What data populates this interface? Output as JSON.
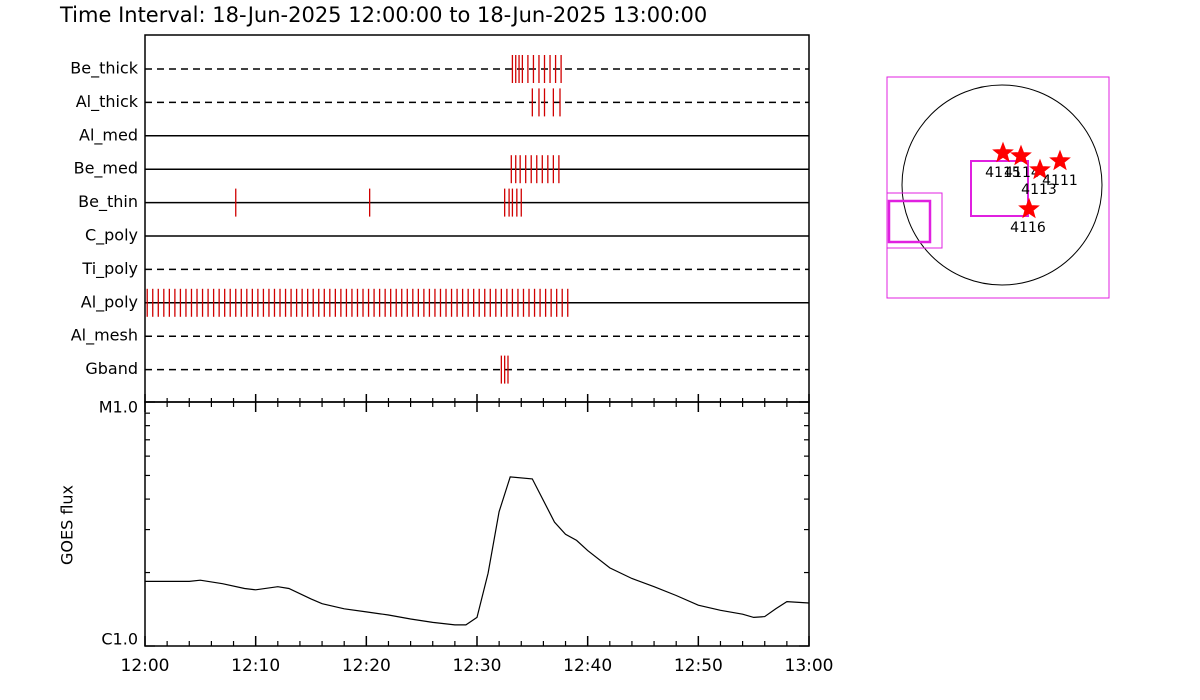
{
  "chart_data": [
    {
      "type": "timeline",
      "title": "Time Interval: 18-Jun-2025 12:00:00 to 18-Jun-2025 13:00:00",
      "color": "#d00000",
      "xlim": [
        0,
        60
      ],
      "rows": [
        {
          "name": "Be_thick",
          "style": "dashed",
          "x": [
            33.2,
            33.5,
            33.8,
            34.1,
            34.6,
            35.1,
            35.6,
            36.1,
            36.6,
            37.1,
            37.6
          ]
        },
        {
          "name": "Al_thick",
          "style": "dashed",
          "x": [
            35.0,
            35.6,
            36.1,
            36.9,
            37.5
          ]
        },
        {
          "name": "Al_med",
          "style": "solid",
          "x": []
        },
        {
          "name": "Be_med",
          "style": "solid",
          "x": [
            33.1,
            33.5,
            33.9,
            34.4,
            34.9,
            35.4,
            35.9,
            36.4,
            36.9,
            37.4
          ]
        },
        {
          "name": "Be_thin",
          "style": "solid",
          "x": [
            8.2,
            20.3,
            32.5,
            32.9,
            33.2,
            33.6,
            34.0
          ]
        },
        {
          "name": "C_poly",
          "style": "solid",
          "x": []
        },
        {
          "name": "Ti_poly",
          "style": "dashed",
          "x": []
        },
        {
          "name": "Al_poly",
          "style": "solid",
          "x": [
            0.2,
            0.7,
            1.2,
            1.7,
            2.2,
            2.7,
            3.2,
            3.7,
            4.2,
            4.7,
            5.2,
            5.7,
            6.2,
            6.7,
            7.2,
            7.7,
            8.2,
            8.7,
            9.2,
            9.7,
            10.2,
            10.7,
            11.2,
            11.7,
            12.2,
            12.7,
            13.2,
            13.7,
            14.2,
            14.7,
            15.2,
            15.7,
            16.2,
            16.7,
            17.2,
            17.7,
            18.2,
            18.7,
            19.2,
            19.7,
            20.2,
            20.7,
            21.2,
            21.7,
            22.2,
            22.7,
            23.2,
            23.7,
            24.2,
            24.7,
            25.2,
            25.7,
            26.2,
            26.7,
            27.2,
            27.7,
            28.2,
            28.7,
            29.2,
            29.7,
            30.2,
            30.7,
            31.2,
            31.7,
            32.2,
            32.7,
            33.2,
            33.7,
            34.2,
            34.7,
            35.2,
            35.7,
            36.2,
            36.7,
            37.2,
            37.7,
            38.2
          ]
        },
        {
          "name": "Al_mesh",
          "style": "dashed",
          "x": []
        },
        {
          "name": "Gband",
          "style": "dashed",
          "x": [
            32.2,
            32.5,
            32.8
          ]
        }
      ]
    },
    {
      "type": "line",
      "ylabel": "GOES flux",
      "color": "#000000",
      "ylog": true,
      "xlim": [
        0,
        60
      ],
      "ylim": [
        1e-06,
        1e-05
      ],
      "yticks": [
        {
          "value": 1e-06,
          "label": "C1.0"
        },
        {
          "value": 1e-05,
          "label": "M1.0"
        }
      ],
      "yminorticks": [
        2e-06,
        3e-06,
        4e-06,
        5e-06,
        6e-06,
        7e-06,
        8e-06,
        9e-06
      ],
      "xticks": [
        {
          "value": 0,
          "label": "12:00"
        },
        {
          "value": 10,
          "label": "12:10"
        },
        {
          "value": 20,
          "label": "12:20"
        },
        {
          "value": 30,
          "label": "12:30"
        },
        {
          "value": 40,
          "label": "12:40"
        },
        {
          "value": 50,
          "label": "12:50"
        },
        {
          "value": 60,
          "label": "13:00"
        }
      ],
      "xminorticks": [
        2,
        4,
        6,
        8,
        12,
        14,
        16,
        18,
        22,
        24,
        26,
        28,
        32,
        34,
        36,
        38,
        42,
        44,
        46,
        48,
        52,
        54,
        56,
        58
      ],
      "x": [
        0,
        2,
        4,
        5,
        7,
        9,
        10,
        12,
        13,
        15,
        16,
        18,
        20,
        22,
        24,
        26,
        28,
        29,
        30,
        31,
        32,
        33,
        35,
        37,
        38,
        39,
        40,
        42,
        44,
        46,
        48,
        50,
        52,
        54,
        55,
        56,
        57,
        58,
        60
      ],
      "values": [
        1.84e-06,
        1.84e-06,
        1.84e-06,
        1.86e-06,
        1.8e-06,
        1.72e-06,
        1.7e-06,
        1.75e-06,
        1.72e-06,
        1.56e-06,
        1.49e-06,
        1.42e-06,
        1.38e-06,
        1.34e-06,
        1.29e-06,
        1.25e-06,
        1.22e-06,
        1.22e-06,
        1.31e-06,
        1.99e-06,
        3.55e-06,
        4.93e-06,
        4.84e-06,
        3.22e-06,
        2.87e-06,
        2.71e-06,
        2.46e-06,
        2.09e-06,
        1.89e-06,
        1.75e-06,
        1.61e-06,
        1.47e-06,
        1.4e-06,
        1.35e-06,
        1.31e-06,
        1.32e-06,
        1.42e-06,
        1.52e-06,
        1.5e-06
      ]
    }
  ],
  "map": {
    "regions": [
      "4115",
      "4114",
      "4113",
      "4111",
      "4116"
    ]
  }
}
